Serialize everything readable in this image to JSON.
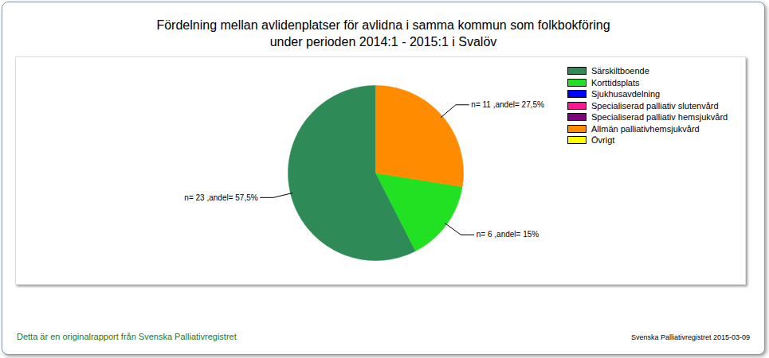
{
  "chart_data": {
    "type": "pie",
    "title": "Fördelning mellan avlidenplatser för avlidna i samma kommun som folkbokföring\nunder perioden 2014:1 - 2015:1 i Svalöv",
    "categories": [
      "Särskiltboende",
      "Korttidsplats",
      "Sjukhusavdelning",
      "Specialiserad palliativ slutenvård",
      "Specialiserad palliativ hemsjukvård",
      "Allmän palliativhemsjukvård",
      "Övrigt"
    ],
    "values": [
      57.5,
      15,
      0,
      0,
      0,
      27.5,
      0
    ],
    "value_labels": [
      "n= 23 ,andel= 57,5%",
      "n= 6 ,andel= 15%",
      null,
      null,
      null,
      "n= 11 ,andel= 27,5%",
      null
    ],
    "colors": [
      "#2e8b57",
      "#22e022",
      "#0000ff",
      "#ff1493",
      "#800080",
      "#ff8c00",
      "#ffff00"
    ],
    "data_labels": true,
    "legend": "top-right",
    "annotations": [
      "Detta är en originalrapport från Svenska Palliativregistret",
      "Svenska Palliativregistret 2015-03-09"
    ]
  }
}
